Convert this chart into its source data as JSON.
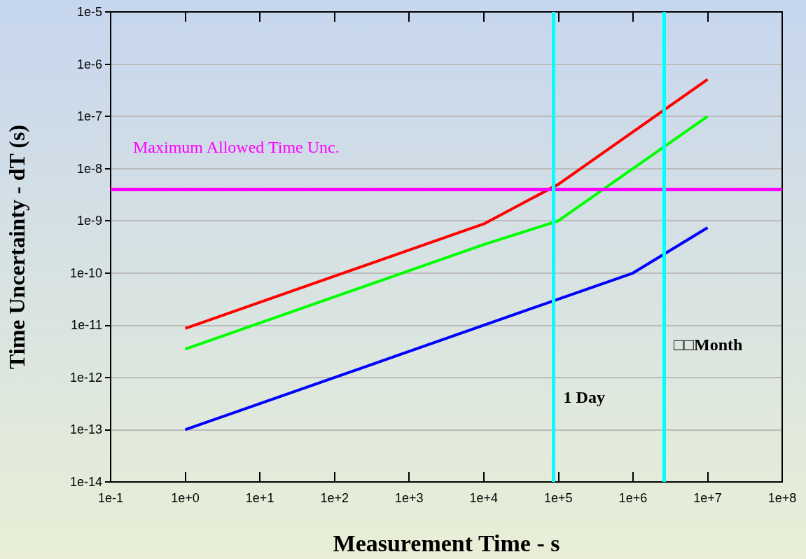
{
  "chart_data": {
    "type": "line",
    "xlabel": "Measurement Time - s",
    "ylabel": "Time Uncertainty - dT (s)",
    "log": "xy",
    "grid": "y",
    "marker": "none",
    "line_style": "solid",
    "xlim": [
      0.1,
      100000000.0
    ],
    "xticks": [
      {
        "value": 0.1,
        "label": "1e-1"
      },
      {
        "value": 1,
        "label": "1e+0"
      },
      {
        "value": 10,
        "label": "1e+1"
      },
      {
        "value": 100,
        "label": "1e+2"
      },
      {
        "value": 1000,
        "label": "1e+3"
      },
      {
        "value": 10000,
        "label": "1e+4"
      },
      {
        "value": 100000,
        "label": "1e+5"
      },
      {
        "value": 1000000,
        "label": "1e+6"
      },
      {
        "value": 10000000,
        "label": "1e+7"
      },
      {
        "value": 100000000,
        "label": "1e+8"
      }
    ],
    "ylim": [
      1e-14,
      1e-05
    ],
    "yticks": [
      {
        "value": 1e-14,
        "label": "1e-14"
      },
      {
        "value": 1e-13,
        "label": "1e-13"
      },
      {
        "value": 1e-12,
        "label": "1e-12"
      },
      {
        "value": 1e-11,
        "label": "1e-11"
      },
      {
        "value": 1e-10,
        "label": "1e-10"
      },
      {
        "value": 1e-09,
        "label": "1e-9"
      },
      {
        "value": 1e-08,
        "label": "1e-8"
      },
      {
        "value": 1e-07,
        "label": "1e-7"
      },
      {
        "value": 1e-06,
        "label": "1e-6"
      },
      {
        "value": 1e-05,
        "label": "1e-5"
      }
    ],
    "series": [
      {
        "color": "#ff0000",
        "x": [
          1,
          10000,
          100000,
          10000000
        ],
        "values": [
          8.7e-12,
          8.7e-10,
          5e-09,
          5.1e-07
        ]
      },
      {
        "color": "#00ff00",
        "x": [
          1,
          10000,
          100000,
          10000000
        ],
        "values": [
          3.5e-12,
          3.5e-10,
          1e-09,
          1e-07
        ]
      },
      {
        "color": "#0000ff",
        "x": [
          1,
          1000000,
          10000000
        ],
        "values": [
          1e-13,
          1e-10,
          7.4e-10
        ]
      }
    ],
    "ref_lines": [
      {
        "axis": "y",
        "value": 4e-09,
        "label": "Maximum Allowed Time Unc.",
        "color": "#ff00ff"
      },
      {
        "axis": "x",
        "value": 86400,
        "label": "1 Day",
        "color": "#00ffff"
      },
      {
        "axis": "x",
        "value": 2600000,
        "label": "□□Month",
        "color": "#00ffff"
      }
    ]
  }
}
